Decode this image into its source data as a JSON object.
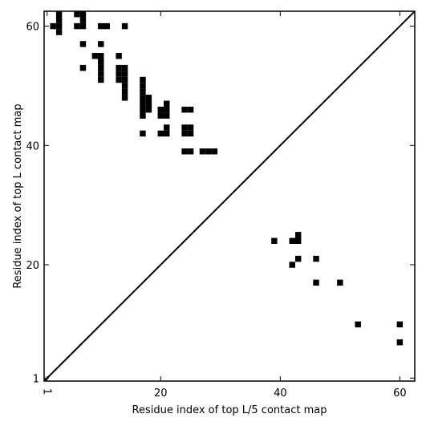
{
  "chart_data": {
    "type": "heatmap",
    "title": "",
    "xlabel": "Residue index of top L/5 contact map",
    "ylabel": "Residue index of top L contact map",
    "xlim": [
      0.5,
      62.5
    ],
    "ylim": [
      0.5,
      62.5
    ],
    "x_ticks": [
      {
        "value": 1,
        "label": "1"
      },
      {
        "value": 20,
        "label": "20"
      },
      {
        "value": 40,
        "label": "40"
      },
      {
        "value": 60,
        "label": "60"
      }
    ],
    "y_ticks": [
      {
        "value": 1,
        "label": "1"
      },
      {
        "value": 20,
        "label": "20"
      },
      {
        "value": 40,
        "label": "40"
      },
      {
        "value": 60,
        "label": "60"
      }
    ],
    "diagonal": true,
    "upper_cells": [
      [
        3,
        62
      ],
      [
        3,
        61
      ],
      [
        3,
        60
      ],
      [
        3,
        59
      ],
      [
        2,
        60
      ],
      [
        6,
        62
      ],
      [
        7,
        62
      ],
      [
        7,
        61
      ],
      [
        7,
        60
      ],
      [
        6,
        60
      ],
      [
        7,
        57
      ],
      [
        7,
        53
      ],
      [
        9,
        55
      ],
      [
        10,
        55
      ],
      [
        10,
        54
      ],
      [
        10,
        53
      ],
      [
        10,
        52
      ],
      [
        10,
        51
      ],
      [
        10,
        57
      ],
      [
        10,
        60
      ],
      [
        11,
        60
      ],
      [
        14,
        60
      ],
      [
        13,
        55
      ],
      [
        13,
        53
      ],
      [
        14,
        53
      ],
      [
        13,
        52
      ],
      [
        14,
        52
      ],
      [
        13,
        51
      ],
      [
        14,
        51
      ],
      [
        14,
        50
      ],
      [
        14,
        49
      ],
      [
        14,
        48
      ],
      [
        17,
        51
      ],
      [
        17,
        50
      ],
      [
        17,
        49
      ],
      [
        17,
        48
      ],
      [
        18,
        48
      ],
      [
        17,
        47
      ],
      [
        18,
        47
      ],
      [
        17,
        46
      ],
      [
        18,
        46
      ],
      [
        17,
        45
      ],
      [
        17,
        42
      ],
      [
        21,
        47
      ],
      [
        20,
        46
      ],
      [
        21,
        46
      ],
      [
        20,
        45
      ],
      [
        21,
        45
      ],
      [
        20,
        42
      ],
      [
        21,
        42
      ],
      [
        21,
        43
      ],
      [
        24,
        46
      ],
      [
        25,
        46
      ],
      [
        24,
        43
      ],
      [
        25,
        43
      ],
      [
        24,
        42
      ],
      [
        25,
        42
      ],
      [
        24,
        39
      ],
      [
        25,
        39
      ],
      [
        27,
        39
      ],
      [
        28,
        39
      ],
      [
        29,
        39
      ]
    ],
    "lower_cells": [
      [
        39,
        24
      ],
      [
        42,
        24
      ],
      [
        43,
        24
      ],
      [
        43,
        25
      ],
      [
        42,
        20
      ],
      [
        43,
        21
      ],
      [
        46,
        21
      ],
      [
        46,
        17
      ],
      [
        50,
        17
      ],
      [
        53,
        10
      ],
      [
        60,
        10
      ],
      [
        60,
        7
      ]
    ]
  }
}
